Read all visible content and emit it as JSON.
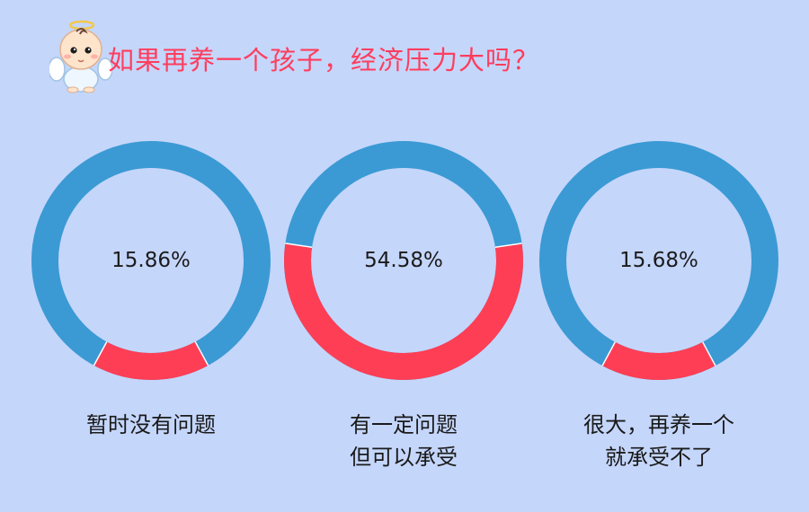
{
  "title": "如果再养一个孩子，经济压力大吗？",
  "colors": {
    "background": "#c5d6fb",
    "ring_blue": "#3b9ad4",
    "ring_red": "#fe3e55",
    "title": "#ff3d5d"
  },
  "icons": {
    "mascot": "baby-angel-icon"
  },
  "chart_data": [
    {
      "type": "pie",
      "style": "donut",
      "value_percent": 15.86,
      "value_label": "15.86%",
      "label_lines": [
        "暂时没有问题"
      ],
      "highlight_color": "#fe3e55",
      "base_color": "#3b9ad4"
    },
    {
      "type": "pie",
      "style": "donut",
      "value_percent": 54.58,
      "value_label": "54.58%",
      "label_lines": [
        "有一定问题",
        "但可以承受"
      ],
      "highlight_color": "#fe3e55",
      "base_color": "#3b9ad4"
    },
    {
      "type": "pie",
      "style": "donut",
      "value_percent": 15.68,
      "value_label": "15.68%",
      "label_lines": [
        "很大，再养一个",
        "就承受不了"
      ],
      "highlight_color": "#fe3e55",
      "base_color": "#3b9ad4"
    }
  ]
}
